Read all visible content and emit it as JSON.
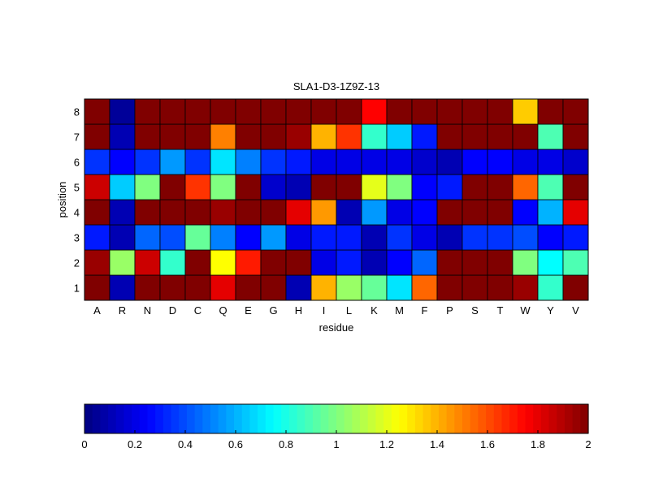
{
  "chart_data": {
    "type": "heatmap",
    "title": "SLA1-D3-1Z9Z-13",
    "xlabel": "residue",
    "ylabel": "position",
    "x_categories": [
      "A",
      "R",
      "N",
      "D",
      "C",
      "Q",
      "E",
      "G",
      "H",
      "I",
      "L",
      "K",
      "M",
      "F",
      "P",
      "S",
      "T",
      "W",
      "Y",
      "V"
    ],
    "y_categories": [
      "1",
      "2",
      "3",
      "4",
      "5",
      "6",
      "7",
      "8"
    ],
    "colormap": "jet",
    "clim": [
      0,
      2
    ],
    "colorbar": {
      "orientation": "horizontal",
      "placement": "bottom",
      "ticks": [
        0,
        0.2,
        0.4,
        0.6,
        0.8,
        1,
        1.2,
        1.4,
        1.6,
        1.8,
        2
      ],
      "tick_labels": [
        "0",
        "0.2",
        "0.4",
        "0.6",
        "0.8",
        "1",
        "1.2",
        "1.4",
        "1.6",
        "1.8",
        "2"
      ]
    },
    "values_by_position": {
      "8": [
        2.0,
        0.05,
        2.0,
        2.0,
        2.0,
        2.0,
        2.0,
        2.0,
        2.0,
        2.0,
        2.0,
        1.75,
        2.0,
        2.0,
        2.0,
        2.0,
        2.0,
        1.35,
        2.0,
        2.0
      ],
      "7": [
        2.0,
        0.1,
        2.0,
        2.0,
        2.0,
        1.5,
        2.0,
        2.0,
        1.95,
        1.4,
        1.65,
        0.85,
        0.65,
        0.3,
        2.0,
        2.0,
        2.0,
        2.0,
        0.9,
        2.0
      ],
      "6": [
        0.35,
        0.25,
        0.35,
        0.55,
        0.35,
        0.7,
        0.5,
        0.35,
        0.3,
        0.2,
        0.2,
        0.2,
        0.2,
        0.15,
        0.1,
        0.25,
        0.25,
        0.2,
        0.2,
        0.15
      ],
      "5": [
        1.85,
        0.65,
        1.0,
        2.0,
        1.65,
        1.0,
        2.0,
        0.15,
        0.1,
        2.0,
        2.0,
        1.2,
        1.0,
        0.25,
        0.3,
        2.0,
        2.0,
        1.55,
        0.9,
        2.0
      ],
      "4": [
        2.0,
        0.1,
        2.0,
        2.0,
        2.0,
        1.95,
        2.0,
        2.0,
        1.8,
        1.45,
        0.1,
        0.55,
        0.2,
        0.25,
        2.0,
        2.0,
        2.0,
        0.25,
        0.6,
        1.8
      ],
      "3": [
        0.3,
        0.1,
        0.45,
        0.4,
        0.95,
        0.5,
        0.25,
        0.55,
        0.2,
        0.3,
        0.3,
        0.1,
        0.35,
        0.2,
        0.1,
        0.35,
        0.35,
        0.4,
        0.25,
        0.3
      ],
      "2": [
        1.95,
        1.05,
        1.85,
        0.85,
        2.0,
        1.25,
        1.7,
        2.0,
        2.0,
        0.2,
        0.3,
        0.1,
        0.25,
        0.45,
        2.0,
        2.0,
        2.0,
        1.0,
        0.75,
        0.9
      ],
      "1": [
        2.0,
        0.1,
        2.0,
        2.0,
        2.0,
        1.8,
        2.0,
        2.0,
        0.1,
        1.4,
        1.05,
        0.95,
        0.7,
        1.55,
        2.0,
        2.0,
        2.0,
        1.95,
        0.85,
        2.0
      ]
    }
  }
}
